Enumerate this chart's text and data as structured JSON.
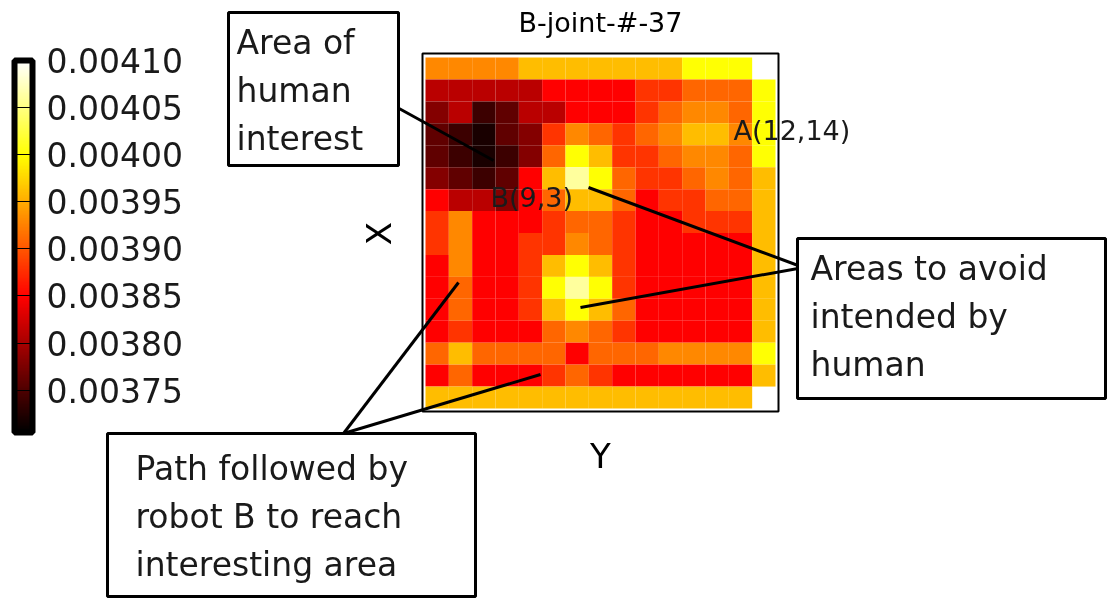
{
  "chart_data": {
    "type": "heatmap",
    "title": "B-joint-#-37",
    "xlabel": "Y",
    "ylabel": "X",
    "categories": [
      null,
      null,
      null,
      null,
      null,
      null,
      null,
      null,
      null,
      null,
      null,
      null,
      null,
      null,
      null
    ],
    "y_categories": [
      null,
      null,
      null,
      null,
      null,
      null,
      null,
      null,
      null,
      null,
      null,
      null,
      null,
      null,
      null,
      null
    ],
    "clim": [
      0.003705,
      0.0041
    ],
    "cticks": [
      0.00375,
      {
        "value": 0.0038,
        "label": "0.00380"
      },
      0.00385,
      {
        "value": 0.0039,
        "label": "0.00390"
      },
      0.00395,
      {
        "value": 0.004,
        "label": "0.00400"
      },
      0.00405,
      {
        "value": 0.0041,
        "label": "0.00410"
      }
    ],
    "cells": [
      [
        0.00393,
        0.00393,
        0.00393,
        0.00393,
        0.00396,
        0.00396,
        0.00396,
        0.00396,
        0.00396,
        0.00396,
        0.00396,
        0.004,
        0.004,
        0.004,
        null
      ],
      [
        0.00381,
        0.00381,
        0.00381,
        0.00381,
        0.00381,
        0.00385,
        0.00385,
        0.00385,
        0.00385,
        0.00388,
        0.00388,
        0.00391,
        0.00391,
        0.00391,
        0.004
      ],
      [
        0.00378,
        0.00381,
        0.00374,
        0.00376,
        0.00381,
        0.00381,
        0.00385,
        0.00385,
        0.00385,
        0.00388,
        0.00391,
        0.00393,
        0.00393,
        0.00391,
        0.004
      ],
      [
        0.00376,
        0.00374,
        0.00372,
        0.00376,
        0.00378,
        0.00388,
        0.00393,
        0.00391,
        0.00388,
        0.00391,
        0.00393,
        0.00396,
        0.00396,
        0.00393,
        0.004
      ],
      [
        0.00376,
        0.00374,
        0.00372,
        0.00374,
        0.00378,
        0.00391,
        0.004,
        0.00396,
        0.00388,
        0.00388,
        0.00391,
        0.00393,
        0.00393,
        0.00391,
        0.004
      ],
      [
        0.00378,
        0.00376,
        0.00374,
        0.00376,
        0.00385,
        0.00396,
        0.00406,
        0.004,
        0.00391,
        0.00388,
        0.00388,
        0.00391,
        0.00393,
        0.00391,
        0.00396
      ],
      [
        0.00385,
        0.00381,
        0.00381,
        0.00378,
        0.00385,
        0.00391,
        0.00396,
        0.00396,
        0.00391,
        0.00385,
        0.00388,
        0.00388,
        0.00391,
        0.00391,
        0.00396
      ],
      [
        0.00388,
        0.00393,
        0.00385,
        0.00385,
        0.00385,
        0.00388,
        0.00391,
        0.00391,
        0.00388,
        0.00385,
        0.00385,
        0.00388,
        0.00388,
        0.00388,
        0.00396
      ],
      [
        0.00388,
        0.00393,
        0.00385,
        0.00385,
        0.00388,
        0.00388,
        0.00393,
        0.00391,
        0.00388,
        0.00385,
        0.00385,
        0.00385,
        0.00385,
        0.00385,
        0.00396
      ],
      [
        0.00385,
        0.00393,
        0.00385,
        0.00385,
        0.00388,
        0.00396,
        0.004,
        0.00396,
        0.00388,
        0.00385,
        0.00385,
        0.00385,
        0.00385,
        0.00385,
        0.00396
      ],
      [
        0.00385,
        0.00391,
        0.00385,
        0.00385,
        0.00388,
        0.004,
        0.00406,
        0.004,
        0.00388,
        0.00385,
        0.00385,
        0.00385,
        0.00385,
        0.00385,
        0.00396
      ],
      [
        0.00385,
        0.00391,
        0.00385,
        0.00385,
        0.00388,
        0.00396,
        0.004,
        0.00396,
        0.00391,
        0.00385,
        0.00385,
        0.00385,
        0.00385,
        0.00385,
        0.00396
      ],
      [
        0.00385,
        0.00388,
        0.00385,
        0.00385,
        0.00385,
        0.00391,
        0.00393,
        0.00391,
        0.00388,
        0.00385,
        0.00385,
        0.00385,
        0.00385,
        0.00385,
        0.00396
      ],
      [
        0.00391,
        0.00396,
        0.00391,
        0.00391,
        0.00391,
        0.00391,
        0.00385,
        0.00391,
        0.00391,
        0.00391,
        0.00393,
        0.00393,
        0.00393,
        0.00393,
        0.004
      ],
      [
        0.00385,
        0.00391,
        0.00385,
        0.00385,
        0.00385,
        0.00388,
        0.00391,
        0.00388,
        0.00385,
        0.00385,
        0.00385,
        0.00385,
        0.00385,
        0.00385,
        0.00396
      ],
      [
        0.00396,
        0.00396,
        0.00396,
        0.00396,
        0.00396,
        0.00396,
        0.00396,
        0.00396,
        0.00396,
        0.00396,
        0.00396,
        0.00396,
        0.00396,
        0.00396,
        null
      ]
    ],
    "annotations": [
      "Area of human interest",
      "Areas to avoid intended by human",
      "Path followed by robot B to reach interesting area",
      "A(12,14)",
      "B(9,3)"
    ]
  }
}
